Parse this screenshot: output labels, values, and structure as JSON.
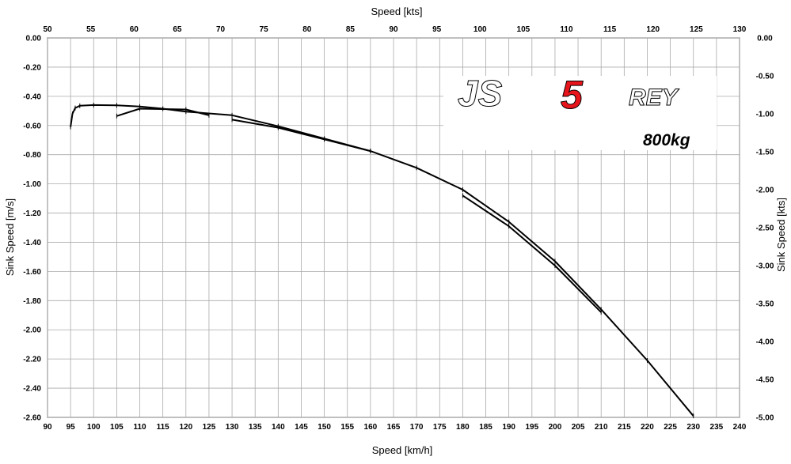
{
  "chart_data": {
    "type": "line",
    "xlabel_bottom": "Speed [km/h]",
    "xlabel_top": "Speed [kts]",
    "ylabel_left": "Sink Speed [m/s]",
    "ylabel_right": "Sink Speed [kts]",
    "xlim": [
      90,
      240
    ],
    "ylim": [
      -2.6,
      0.0
    ],
    "xlim_top": [
      50,
      130
    ],
    "ylim_right": [
      -5.0,
      0.0
    ],
    "grid": true,
    "x_ticks": [
      "90",
      "95",
      "100",
      "105",
      "110",
      "115",
      "120",
      "125",
      "130",
      "135",
      "140",
      "145",
      "150",
      "155",
      "160",
      "165",
      "170",
      "175",
      "180",
      "185",
      "190",
      "195",
      "200",
      "205",
      "210",
      "215",
      "220",
      "225",
      "230",
      "235",
      "240"
    ],
    "x_top_ticks": [
      "50",
      "55",
      "60",
      "65",
      "70",
      "75",
      "80",
      "85",
      "90",
      "95",
      "100",
      "105",
      "110",
      "115",
      "120",
      "125",
      "130"
    ],
    "y_ticks": [
      "0.00",
      "-0.20",
      "-0.40",
      "-0.60",
      "-0.80",
      "-1.00",
      "-1.20",
      "-1.40",
      "-1.60",
      "-1.80",
      "-2.00",
      "-2.20",
      "-2.40",
      "-2.60"
    ],
    "y_right_ticks": [
      "0.00",
      "-0.50",
      "-1.00",
      "-1.50",
      "-2.00",
      "-2.50",
      "-3.00",
      "-3.50",
      "-4.00",
      "-4.50",
      "-5.00"
    ],
    "series": [
      {
        "x": [
          95,
          95.4,
          96,
          97,
          100,
          105,
          110,
          115,
          120,
          130,
          140,
          150,
          160,
          170,
          180,
          190,
          200,
          210,
          220,
          230
        ],
        "y": [
          -0.61,
          -0.52,
          -0.48,
          -0.465,
          -0.46,
          -0.462,
          -0.47,
          -0.485,
          -0.505,
          -0.53,
          -0.605,
          -0.69,
          -0.775,
          -0.89,
          -1.04,
          -1.26,
          -1.53,
          -1.86,
          -2.21,
          -2.59
        ]
      },
      {
        "x": [
          105,
          110,
          120,
          125
        ],
        "y": [
          -0.535,
          -0.485,
          -0.49,
          -0.53
        ]
      },
      {
        "x": [
          130,
          140,
          150,
          160
        ],
        "y": [
          -0.56,
          -0.615,
          -0.695,
          -0.775
        ]
      },
      {
        "x": [
          180,
          190,
          200,
          210
        ],
        "y": [
          -1.08,
          -1.29,
          -1.56,
          -1.88
        ]
      }
    ],
    "annotations": {
      "logo_js": "JS",
      "logo_5": "5",
      "logo_rey": "REY",
      "weight": "800kg"
    },
    "colors": {
      "line": "#000000",
      "grid": "#aaaaaa",
      "logo_red": "#e8141b"
    }
  }
}
